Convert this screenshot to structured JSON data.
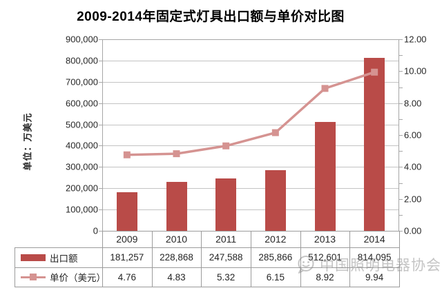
{
  "title": "2009-2014年固定式灯具出口额与单价对比图",
  "watermark": {
    "text": "中国照明电器协会",
    "logo": "chat-bubble-smiley-icon"
  },
  "colors": {
    "bar": "#b94b48",
    "line": "#d59391",
    "gridline": "#c3c3c3",
    "axis": "#a6a6a6",
    "table_border": "#9b9b9b",
    "text": "#262626"
  },
  "chart_data": {
    "type": "bar",
    "combo": "bar+line-dual-axis",
    "title": "2009-2014年固定式灯具出口额与单价对比图",
    "categories": [
      "2009",
      "2010",
      "2011",
      "2012",
      "2013",
      "2014"
    ],
    "series": [
      {
        "name": "出口额",
        "type": "bar",
        "axis": "left",
        "color": "#b94b48",
        "values": [
          181257,
          228868,
          247588,
          285866,
          512601,
          814095
        ],
        "labels": [
          "181,257",
          "228,868",
          "247,588",
          "285,866",
          "512,601",
          "814,095"
        ]
      },
      {
        "name": "单价（美元）",
        "type": "line",
        "axis": "right",
        "color": "#d59391",
        "marker": "square",
        "values": [
          4.76,
          4.83,
          5.32,
          6.15,
          8.92,
          9.94
        ],
        "labels": [
          "4.76",
          "4.83",
          "5.32",
          "6.15",
          "8.92",
          "9.94"
        ]
      }
    ],
    "left_axis": {
      "title": "单位：万美元",
      "min": 0,
      "max": 900000,
      "major_step": 100000,
      "tick_labels": [
        "900,000",
        "800,000",
        "700,000",
        "600,000",
        "500,000",
        "400,000",
        "300,000",
        "200,000",
        "100,000",
        "0"
      ]
    },
    "right_axis": {
      "min": 0,
      "max": 12,
      "major_step": 2,
      "minor_step": 1,
      "tick_labels": [
        "12.00",
        "10.00",
        "8.00",
        "6.00",
        "4.00",
        "2.00",
        "0.00"
      ]
    },
    "gridlines": "horizontal-major",
    "legend_position": "data-table-left",
    "data_table": true
  }
}
